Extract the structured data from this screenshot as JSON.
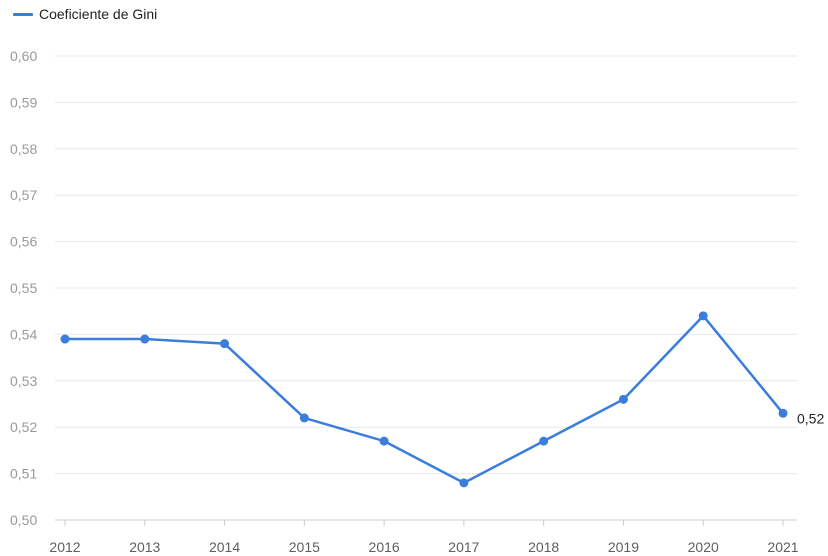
{
  "colors": {
    "series": "#3b7ddd",
    "grid": "#e8e8e8",
    "axis": "#cccccc"
  },
  "chart_data": {
    "type": "line",
    "title": "",
    "xlabel": "",
    "ylabel": "",
    "x": [
      "2012",
      "2013",
      "2014",
      "2015",
      "2016",
      "2017",
      "2018",
      "2019",
      "2020",
      "2021"
    ],
    "series": [
      {
        "name": "Coeficiente de Gini",
        "values": [
          0.539,
          0.539,
          0.538,
          0.522,
          0.517,
          0.508,
          0.517,
          0.526,
          0.544,
          0.523
        ]
      }
    ],
    "ylim": [
      0.5,
      0.6
    ],
    "yticks": [
      "0,50",
      "0,51",
      "0,52",
      "0,53",
      "0,54",
      "0,55",
      "0,56",
      "0,57",
      "0,58",
      "0,59",
      "0,60"
    ],
    "grid": true,
    "legend_position": "top-left",
    "end_label": "0,52"
  }
}
